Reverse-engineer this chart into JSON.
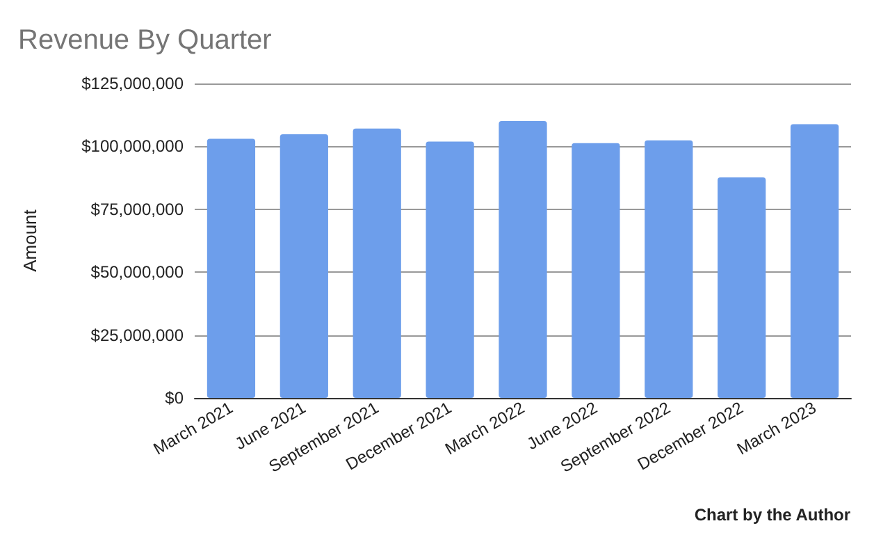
{
  "chart_data": {
    "type": "bar",
    "title": "Revenue By Quarter",
    "ylabel": "Amount",
    "annotations": [
      "Chart by the Author"
    ],
    "categories": [
      "March 2021",
      "June 2021",
      "September 2021",
      "December 2021",
      "March 2022",
      "June 2022",
      "September 2022",
      "December 2022",
      "March 2023"
    ],
    "values": [
      103000000,
      104800000,
      107100000,
      101900000,
      110100000,
      101300000,
      102400000,
      87700000,
      108800000
    ],
    "color": "#6d9eeb",
    "ylim": [
      0,
      125000000
    ],
    "yticks": [
      {
        "value": 0,
        "label": "$0"
      },
      {
        "value": 25000000,
        "label": "$25,000,000"
      },
      {
        "value": 50000000,
        "label": "$50,000,000"
      },
      {
        "value": 75000000,
        "label": "$75,000,000"
      },
      {
        "value": 100000000,
        "label": "$100,000,000"
      },
      {
        "value": 125000000,
        "label": "$125,000,000"
      }
    ],
    "grid": "y"
  }
}
